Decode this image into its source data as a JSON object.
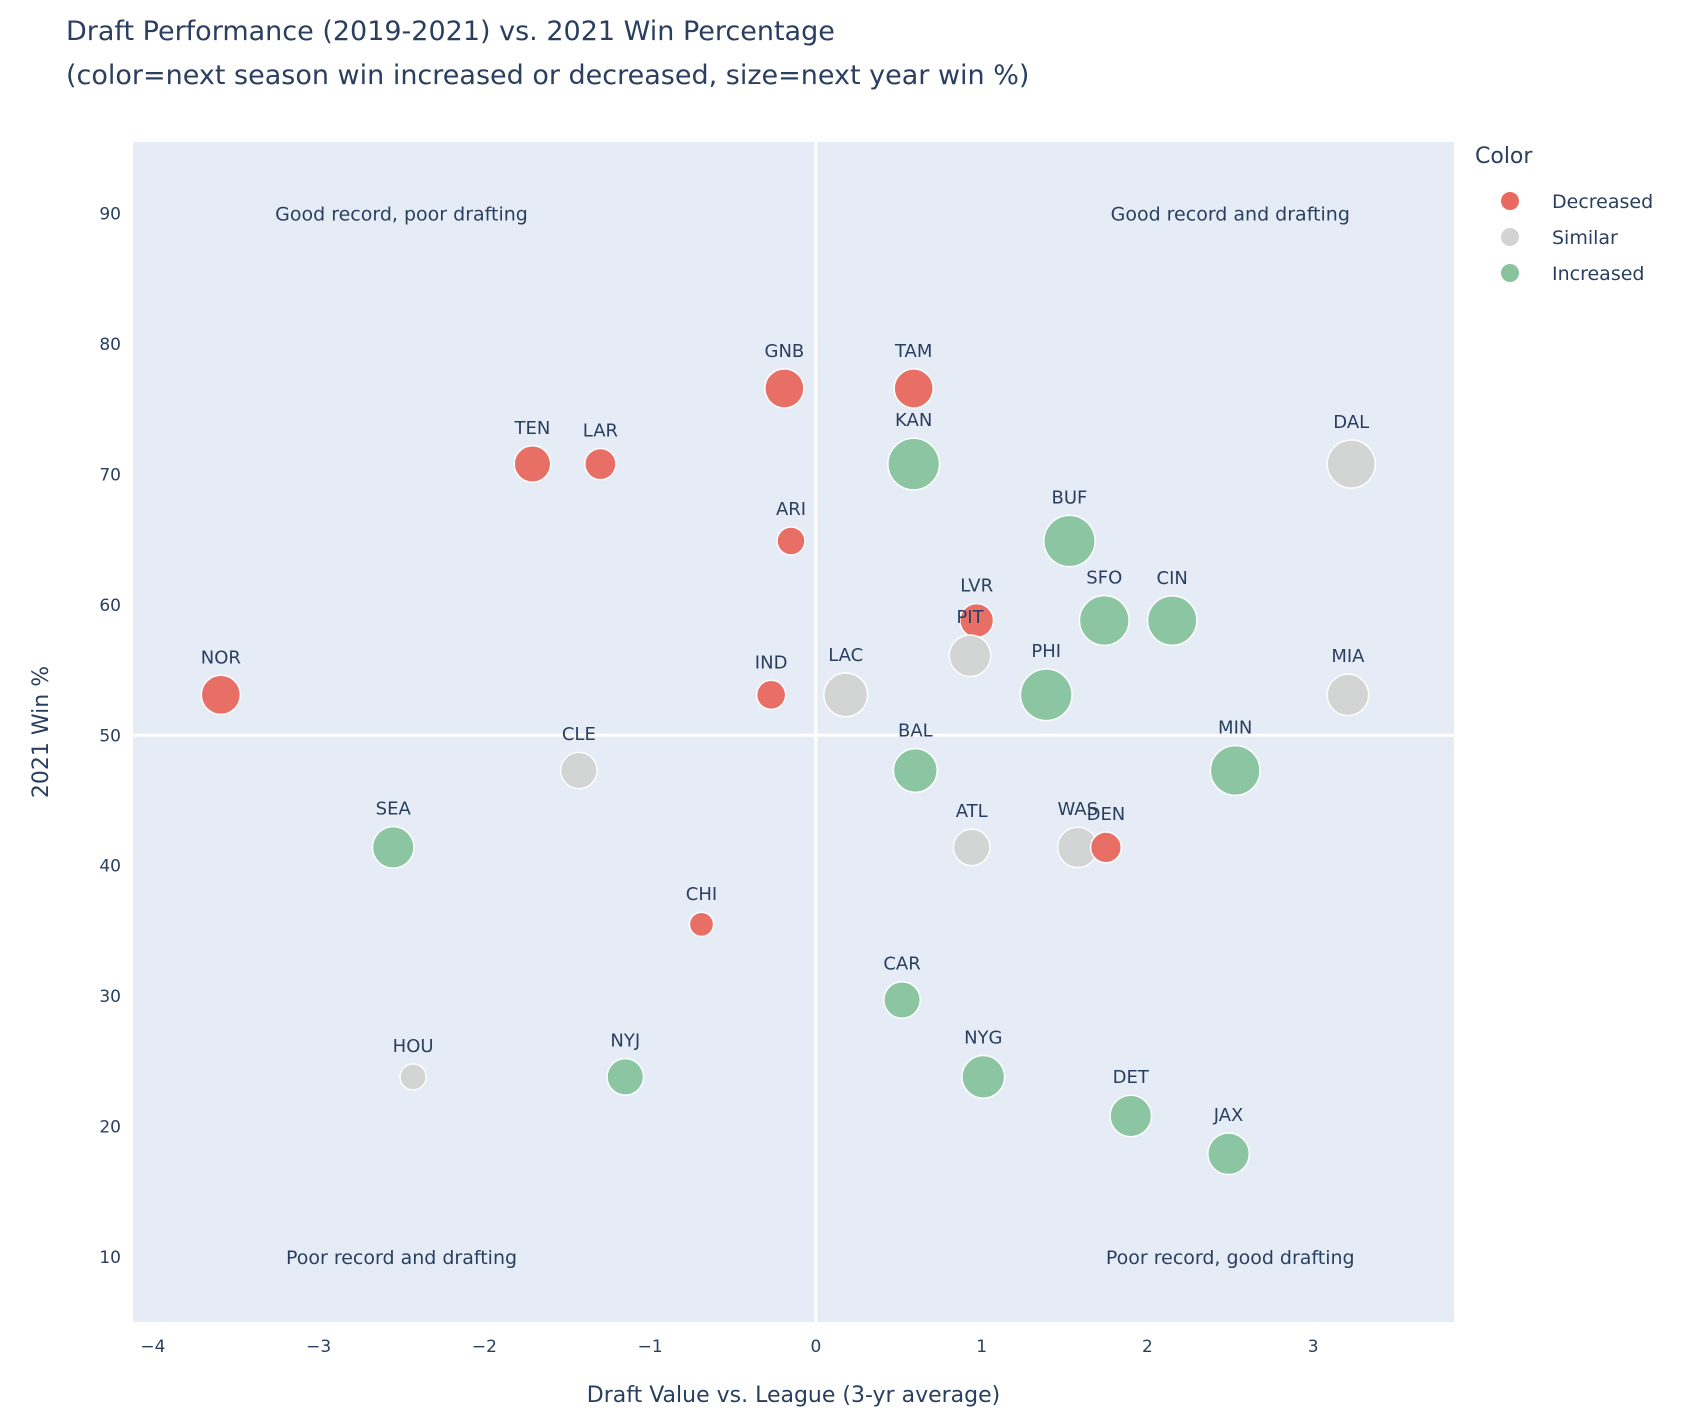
{
  "chart_data": {
    "type": "scatter",
    "title_line1": "Draft Performance (2019-2021) vs. 2021 Win Percentage",
    "title_line2": "(color=next season win increased or decreased, size=next year win %)",
    "xlabel": "Draft Value vs. League (3-yr average)",
    "ylabel": "2021 Win %",
    "xlim": [
      -4.12,
      3.85
    ],
    "ylim": [
      5,
      95.5
    ],
    "xticks": [
      -4,
      -3,
      -2,
      -1,
      0,
      1,
      2,
      3
    ],
    "xtick_labels": [
      "−4",
      "−3",
      "−2",
      "−1",
      "0",
      "1",
      "2",
      "3"
    ],
    "yticks": [
      10,
      20,
      30,
      40,
      50,
      60,
      70,
      80,
      90
    ],
    "ytick_labels": [
      "10",
      "20",
      "30",
      "40",
      "50",
      "60",
      "70",
      "80",
      "90"
    ],
    "grid": false,
    "reference_lines": {
      "x": 0,
      "y": 50
    },
    "quadrant_labels": [
      {
        "text": "Good record, poor drafting",
        "x": -2.5,
        "y": 90
      },
      {
        "text": "Good record and drafting",
        "x": 2.5,
        "y": 90
      },
      {
        "text": "Poor record and drafting",
        "x": -2.5,
        "y": 10
      },
      {
        "text": "Poor record, good drafting",
        "x": 2.5,
        "y": 10
      }
    ],
    "legend": {
      "title": "Color",
      "placement": "top-right-outside",
      "entries": [
        {
          "name": "Decreased",
          "color": "#e8695f"
        },
        {
          "name": "Similar",
          "color": "#d3d3d3"
        },
        {
          "name": "Increased",
          "color": "#88c39d"
        }
      ]
    },
    "points": [
      {
        "team": "NOR",
        "x": -3.59,
        "y": 53.1,
        "group": "Decreased",
        "next_win_pct": 47
      },
      {
        "team": "TEN",
        "x": -1.71,
        "y": 70.8,
        "group": "Decreased",
        "next_win_pct": 41
      },
      {
        "team": "LAR",
        "x": -1.3,
        "y": 70.8,
        "group": "Decreased",
        "next_win_pct": 30
      },
      {
        "team": "GNB",
        "x": -0.19,
        "y": 76.6,
        "group": "Decreased",
        "next_win_pct": 47
      },
      {
        "team": "TAM",
        "x": 0.59,
        "y": 76.6,
        "group": "Decreased",
        "next_win_pct": 47
      },
      {
        "team": "KAN",
        "x": 0.59,
        "y": 70.8,
        "group": "Increased",
        "next_win_pct": 82
      },
      {
        "team": "ARI",
        "x": -0.15,
        "y": 64.9,
        "group": "Decreased",
        "next_win_pct": 24
      },
      {
        "team": "IND",
        "x": -0.27,
        "y": 53.1,
        "group": "Decreased",
        "next_win_pct": 26
      },
      {
        "team": "LAC",
        "x": 0.18,
        "y": 53.1,
        "group": "Similar",
        "next_win_pct": 59
      },
      {
        "team": "LVR",
        "x": 0.97,
        "y": 58.8,
        "group": "Decreased",
        "next_win_pct": 35
      },
      {
        "team": "PIT",
        "x": 0.93,
        "y": 56.1,
        "group": "Similar",
        "next_win_pct": 53
      },
      {
        "team": "BUF",
        "x": 1.53,
        "y": 64.9,
        "group": "Increased",
        "next_win_pct": 81
      },
      {
        "team": "SFO",
        "x": 1.74,
        "y": 58.8,
        "group": "Increased",
        "next_win_pct": 76
      },
      {
        "team": "CIN",
        "x": 2.15,
        "y": 58.8,
        "group": "Increased",
        "next_win_pct": 75
      },
      {
        "team": "PHI",
        "x": 1.39,
        "y": 53.1,
        "group": "Increased",
        "next_win_pct": 82
      },
      {
        "team": "DAL",
        "x": 3.23,
        "y": 70.8,
        "group": "Similar",
        "next_win_pct": 71
      },
      {
        "team": "MIA",
        "x": 3.21,
        "y": 53.1,
        "group": "Similar",
        "next_win_pct": 53
      },
      {
        "team": "MIN",
        "x": 2.53,
        "y": 47.3,
        "group": "Increased",
        "next_win_pct": 76
      },
      {
        "team": "BAL",
        "x": 0.6,
        "y": 47.3,
        "group": "Increased",
        "next_win_pct": 59
      },
      {
        "team": "CLE",
        "x": -1.43,
        "y": 47.3,
        "group": "Similar",
        "next_win_pct": 41
      },
      {
        "team": "SEA",
        "x": -2.55,
        "y": 41.4,
        "group": "Increased",
        "next_win_pct": 53
      },
      {
        "team": "ATL",
        "x": 0.94,
        "y": 41.4,
        "group": "Similar",
        "next_win_pct": 41
      },
      {
        "team": "WAS",
        "x": 1.58,
        "y": 41.4,
        "group": "Similar",
        "next_win_pct": 50
      },
      {
        "team": "DEN",
        "x": 1.75,
        "y": 41.4,
        "group": "Decreased",
        "next_win_pct": 29
      },
      {
        "team": "CHI",
        "x": -0.69,
        "y": 35.5,
        "group": "Decreased",
        "next_win_pct": 18
      },
      {
        "team": "CAR",
        "x": 0.52,
        "y": 29.7,
        "group": "Increased",
        "next_win_pct": 41
      },
      {
        "team": "HOU",
        "x": -2.43,
        "y": 23.8,
        "group": "Similar",
        "next_win_pct": 21
      },
      {
        "team": "NYJ",
        "x": -1.15,
        "y": 23.8,
        "group": "Increased",
        "next_win_pct": 41
      },
      {
        "team": "NYG",
        "x": 1.01,
        "y": 23.8,
        "group": "Increased",
        "next_win_pct": 56
      },
      {
        "team": "DET",
        "x": 1.9,
        "y": 20.8,
        "group": "Increased",
        "next_win_pct": 53
      },
      {
        "team": "JAX",
        "x": 2.49,
        "y": 17.9,
        "group": "Increased",
        "next_win_pct": 53
      }
    ],
    "label_offsets": {
      "PIT": "overlap-LVR",
      "WAS": "overlap-DEN"
    }
  }
}
